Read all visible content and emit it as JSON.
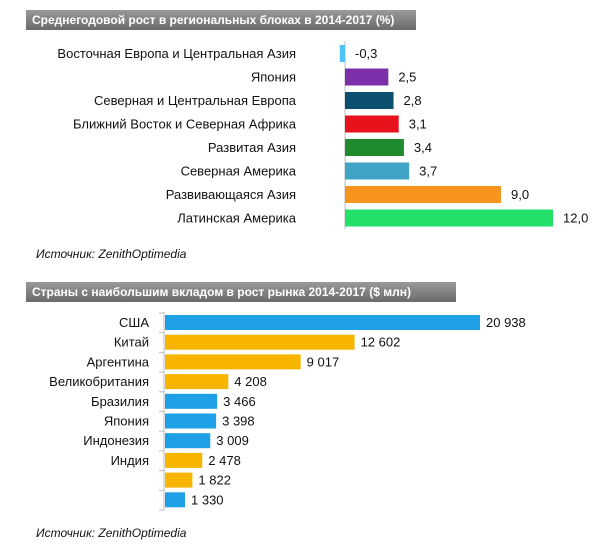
{
  "chart_data": [
    {
      "type": "bar",
      "orientation": "horizontal",
      "title": "Среднегодовой рост в региональных блоках в 2014-2017 (%)",
      "source": "Источник: ZenithOptimedia",
      "categories": [
        "Восточная Европа и Центральная Азия",
        "Япония",
        "Северная и Центральная Европа",
        "Ближний Восток и Северная Африка",
        "Развитая Азия",
        "Северная Америка",
        "Развивающаяся Азия",
        "Латинская Америка"
      ],
      "values": [
        -0.3,
        2.5,
        2.8,
        3.1,
        3.4,
        3.7,
        9.0,
        12.0
      ],
      "value_labels": [
        "-0,3",
        "2,5",
        "2,8",
        "3,1",
        "3,4",
        "3,7",
        "9,0",
        "12,0"
      ],
      "colors": [
        "#4fc3f7",
        "#7b2fa8",
        "#0d4f6e",
        "#e8121c",
        "#1f8a2e",
        "#3fa4c6",
        "#f7941d",
        "#22e06a"
      ],
      "xlim": [
        -0.3,
        12.0
      ]
    },
    {
      "type": "bar",
      "orientation": "horizontal",
      "title": "Страны с наибольшим вкладом в рост рынка 2014-2017  ($ млн)",
      "source": "Источник: ZenithOptimedia",
      "categories": [
        "США",
        "Китай",
        "Аргентина",
        "Великобритания",
        "Бразилия",
        "Япония",
        "Индонезия",
        "Индия",
        "",
        ""
      ],
      "values": [
        20938,
        12602,
        9017,
        4208,
        3466,
        3398,
        3009,
        2478,
        1822,
        1330
      ],
      "value_labels": [
        "20 938",
        "12 602",
        "9 017",
        "4 208",
        "3 466",
        "3 398",
        "3 009",
        "2 478",
        "1 822",
        "1 330"
      ],
      "colors": [
        "#1ea0e6",
        "#f7b500",
        "#f7b500",
        "#f7b500",
        "#1ea0e6",
        "#1ea0e6",
        "#1ea0e6",
        "#f7b500",
        "#f7b500",
        "#1ea0e6"
      ],
      "xlim": [
        0,
        20938
      ]
    }
  ]
}
